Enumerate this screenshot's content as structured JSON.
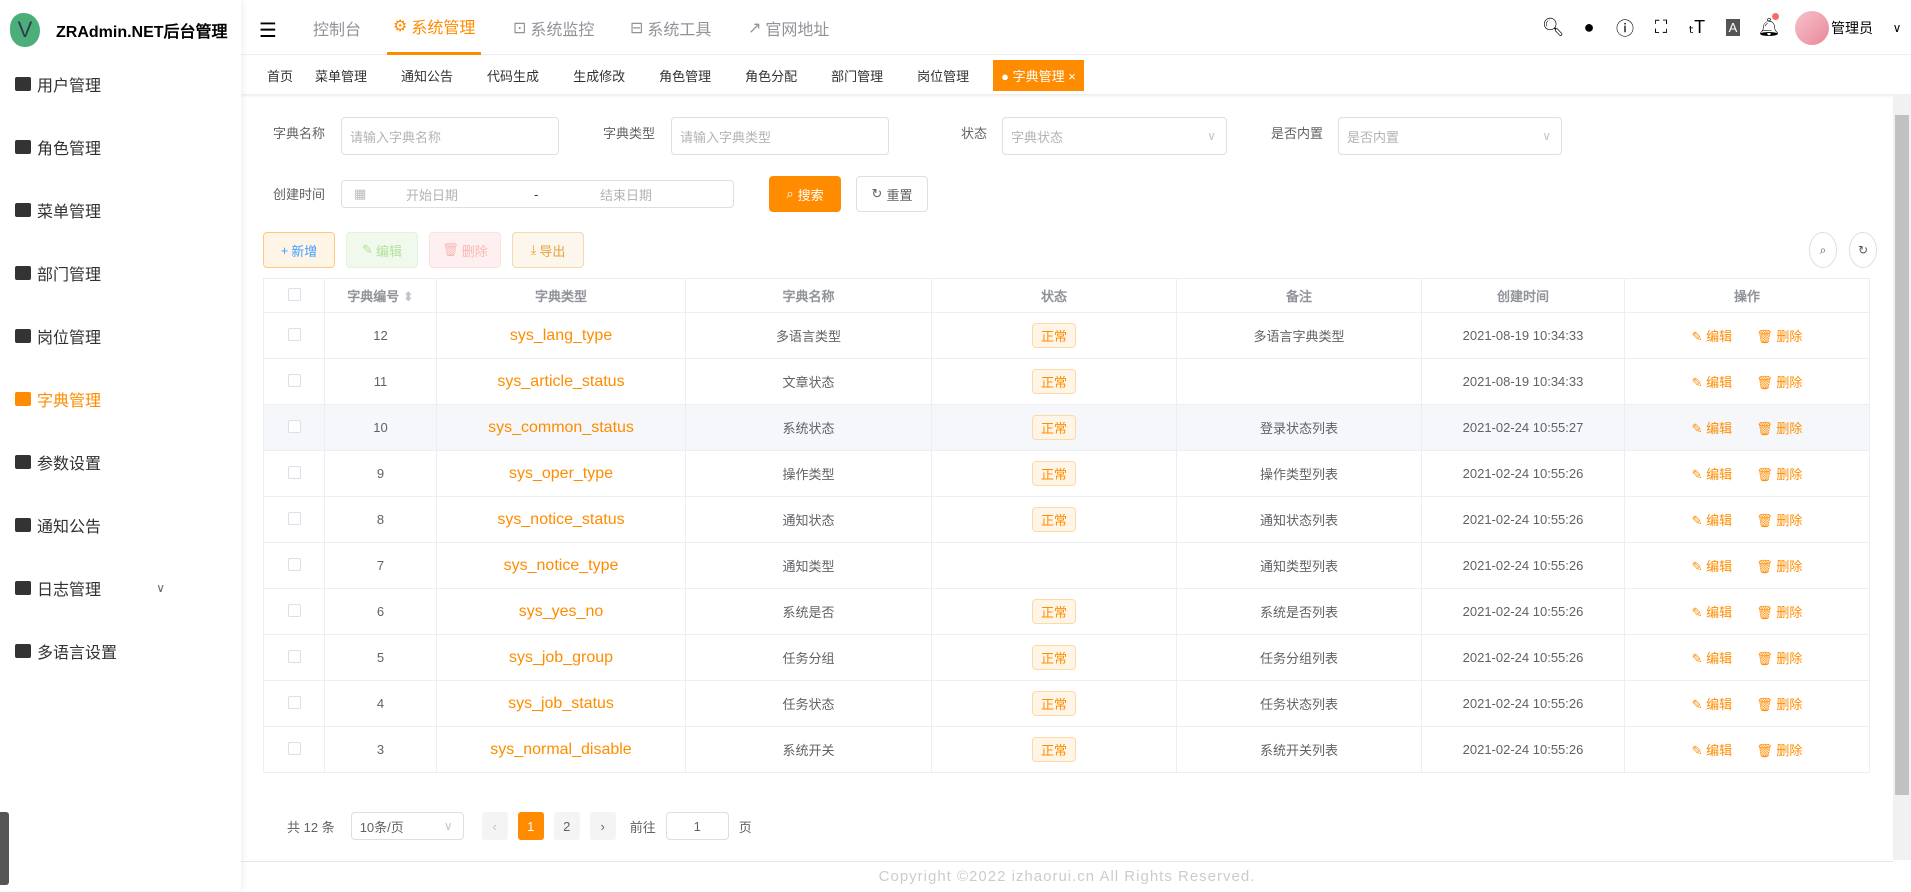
{
  "app": {
    "title": "ZRAdmin.NET后台管理",
    "logo_letter": "V",
    "accent": "#ff8c00"
  },
  "sidebar": {
    "items": [
      {
        "label": "用户管理",
        "icon": "user-icon"
      },
      {
        "label": "角色管理",
        "icon": "users-icon"
      },
      {
        "label": "菜单管理",
        "icon": "tree-table-icon"
      },
      {
        "label": "部门管理",
        "icon": "org-tree-icon"
      },
      {
        "label": "岗位管理",
        "icon": "post-icon"
      },
      {
        "label": "字典管理",
        "icon": "dict-icon",
        "active": true
      },
      {
        "label": "参数设置",
        "icon": "edit-icon"
      },
      {
        "label": "通知公告",
        "icon": "message-icon"
      },
      {
        "label": "日志管理",
        "icon": "log-icon",
        "expandable": true
      },
      {
        "label": "多语言设置",
        "icon": "language-icon"
      }
    ]
  },
  "topnav": {
    "items": [
      "控制台",
      "系统管理",
      "系统监控",
      "系统工具",
      "官网地址"
    ],
    "active": "系统管理",
    "user": "管理员"
  },
  "tags": {
    "items": [
      "首页",
      "菜单管理",
      "通知公告",
      "代码生成",
      "生成修改",
      "角色管理",
      "角色分配",
      "部门管理",
      "岗位管理"
    ],
    "active": "字典管理"
  },
  "filters": {
    "name_label": "字典名称",
    "name_placeholder": "请输入字典名称",
    "type_label": "字典类型",
    "type_placeholder": "请输入字典类型",
    "status_label": "状态",
    "status_placeholder": "字典状态",
    "builtin_label": "是否内置",
    "builtin_placeholder": "是否内置",
    "date_label": "创建时间",
    "start_placeholder": "开始日期",
    "date_sep": "-",
    "end_placeholder": "结束日期",
    "search": "搜索",
    "reset": "重置"
  },
  "toolbar": {
    "add": "新增",
    "edit": "编辑",
    "delete": "删除",
    "export": "导出"
  },
  "table": {
    "headers": [
      "字典编号",
      "字典类型",
      "字典名称",
      "状态",
      "备注",
      "创建时间",
      "操作"
    ],
    "rows": [
      {
        "id": "12",
        "type": "sys_lang_type",
        "name": "多语言类型",
        "status": "正常",
        "remark": "多语言字典类型",
        "time": "2021-08-19 10:34:33"
      },
      {
        "id": "11",
        "type": "sys_article_status",
        "name": "文章状态",
        "status": "正常",
        "remark": "",
        "time": "2021-08-19 10:34:33"
      },
      {
        "id": "10",
        "type": "sys_common_status",
        "name": "系统状态",
        "status": "正常",
        "remark": "登录状态列表",
        "time": "2021-02-24 10:55:27"
      },
      {
        "id": "9",
        "type": "sys_oper_type",
        "name": "操作类型",
        "status": "正常",
        "remark": "操作类型列表",
        "time": "2021-02-24 10:55:26"
      },
      {
        "id": "8",
        "type": "sys_notice_status",
        "name": "通知状态",
        "status": "正常",
        "remark": "通知状态列表",
        "time": "2021-02-24 10:55:26"
      },
      {
        "id": "7",
        "type": "sys_notice_type",
        "name": "通知类型",
        "status": "",
        "remark": "通知类型列表",
        "time": "2021-02-24 10:55:26"
      },
      {
        "id": "6",
        "type": "sys_yes_no",
        "name": "系统是否",
        "status": "正常",
        "remark": "系统是否列表",
        "time": "2021-02-24 10:55:26"
      },
      {
        "id": "5",
        "type": "sys_job_group",
        "name": "任务分组",
        "status": "正常",
        "remark": "任务分组列表",
        "time": "2021-02-24 10:55:26"
      },
      {
        "id": "4",
        "type": "sys_job_status",
        "name": "任务状态",
        "status": "正常",
        "remark": "任务状态列表",
        "time": "2021-02-24 10:55:26"
      },
      {
        "id": "3",
        "type": "sys_normal_disable",
        "name": "系统开关",
        "status": "正常",
        "remark": "系统开关列表",
        "time": "2021-02-24 10:55:26"
      }
    ],
    "edit": "编辑",
    "delete": "删除"
  },
  "pagination": {
    "total": "共 12 条",
    "page_size": "10条/页",
    "pages": [
      "1",
      "2"
    ],
    "current": "1",
    "goto_label": "前往",
    "goto_value": "1",
    "page_suffix": "页"
  },
  "footer": "Copyright ©2022 izhaorui.cn All Rights Reserved."
}
